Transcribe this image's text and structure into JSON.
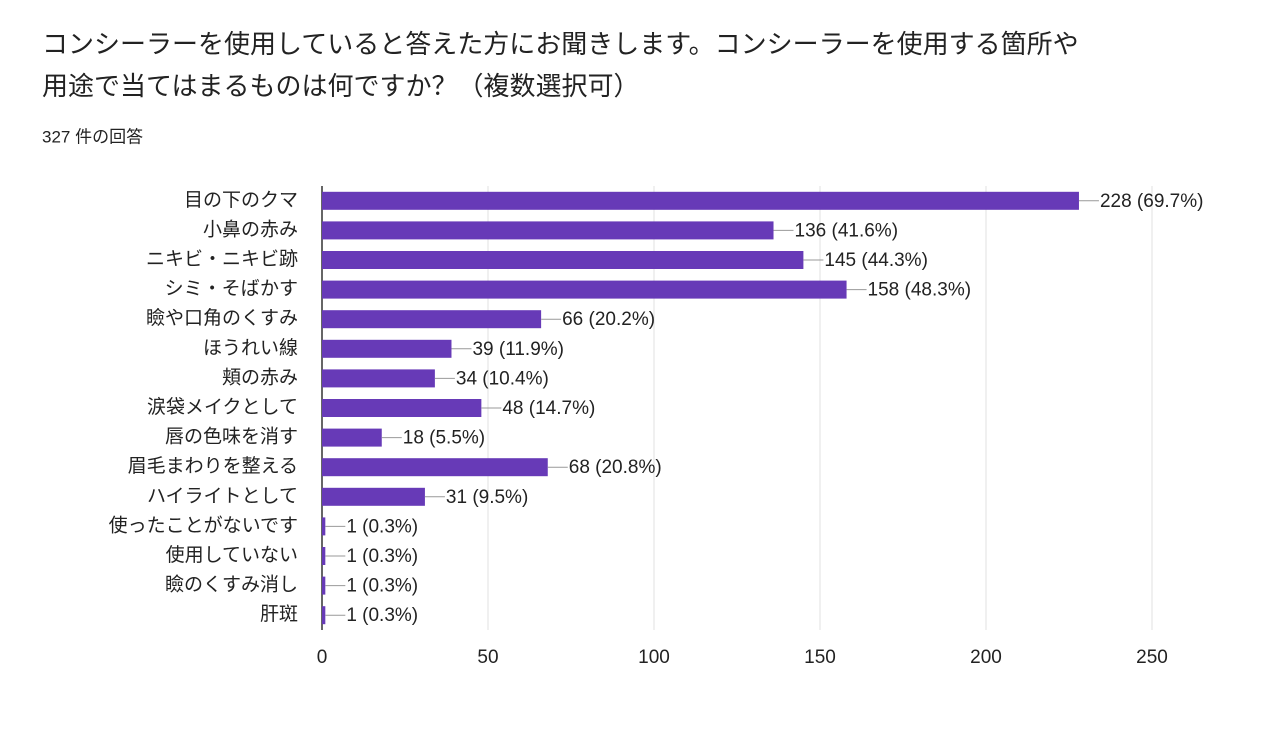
{
  "chart_data": {
    "type": "hbar",
    "title": [
      "コンシーラーを使用していると答えた方にお聞きします。コンシーラーを使用する箇所や",
      "用途で当てはまるものは何ですか？（複数選択可）"
    ],
    "subtitle": "327 件の回答",
    "categories": [
      "目の下のクマ",
      "小鼻の赤み",
      "ニキビ・ニキビ跡",
      "シミ・そばかす",
      "瞼や口角のくすみ",
      "ほうれい線",
      "頬の赤み",
      "涙袋メイクとして",
      "唇の色味を消す",
      "眉毛まわりを整える",
      "ハイライトとして",
      "使ったことがないです",
      "使用していない",
      "瞼のくすみ消し",
      "肝斑"
    ],
    "values": [
      228,
      136,
      145,
      158,
      66,
      39,
      34,
      48,
      18,
      68,
      31,
      1,
      1,
      1,
      1
    ],
    "value_labels": [
      "228 (69.7%)",
      "136 (41.6%)",
      "145 (44.3%)",
      "158 (48.3%)",
      "66 (20.2%)",
      "39 (11.9%)",
      "34 (10.4%)",
      "48 (14.7%)",
      "18 (5.5%)",
      "68 (20.8%)",
      "31 (9.5%)",
      "1 (0.3%)",
      "1 (0.3%)",
      "1 (0.3%)",
      "1 (0.3%)"
    ],
    "color": "#673ab7",
    "xlim": [
      0,
      250
    ],
    "xticks": [
      0,
      50,
      100,
      150,
      200,
      250
    ],
    "grid": true
  }
}
